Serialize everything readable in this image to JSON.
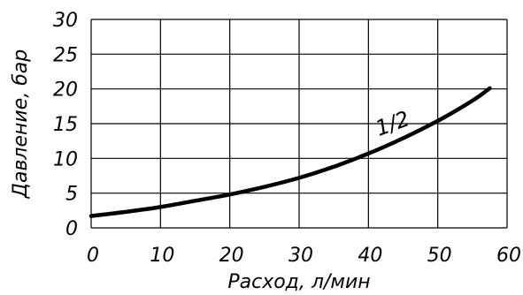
{
  "chart_data": {
    "type": "line",
    "title": "",
    "xlabel": "Расход, л/мин",
    "ylabel": "Давление, бар",
    "xlim": [
      0,
      60
    ],
    "ylim": [
      0,
      30
    ],
    "xticks": [
      0,
      10,
      20,
      30,
      40,
      50,
      60
    ],
    "yticks": [
      0,
      5,
      10,
      15,
      20,
      25,
      30
    ],
    "grid": true,
    "series": [
      {
        "name": "1/2",
        "x": [
          0,
          5,
          10,
          15,
          20,
          25,
          30,
          35,
          40,
          45,
          50,
          55,
          57.5
        ],
        "y": [
          1.7,
          2.3,
          3.0,
          3.9,
          4.8,
          5.9,
          7.2,
          8.8,
          10.7,
          12.9,
          15.4,
          18.3,
          20.1
        ]
      }
    ]
  }
}
